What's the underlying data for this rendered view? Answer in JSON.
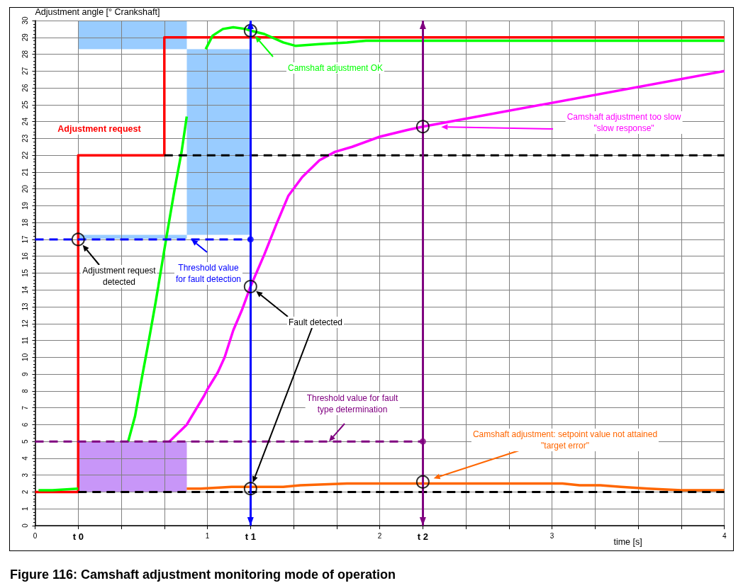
{
  "chart_data": {
    "type": "line",
    "title": "Figure 116: Camshaft adjustment monitoring mode of operation",
    "xlabel": "time [s]",
    "ylabel": "Adjustment angle [° Crankshaft]",
    "xlim": [
      0,
      4
    ],
    "xticks": [
      0,
      {
        "value": 0.25,
        "label": "t 0"
      },
      {
        "value": 0.5,
        "label": null
      },
      {
        "value": 0.75,
        "label": null
      },
      1,
      {
        "value": 1.25,
        "label": "t 1"
      },
      {
        "value": 1.5,
        "label": null
      },
      {
        "value": 1.75,
        "label": null
      },
      2,
      {
        "value": 2.25,
        "label": "t 2"
      },
      {
        "value": 2.5,
        "label": null
      },
      {
        "value": 2.75,
        "label": null
      },
      3,
      {
        "value": 3.25,
        "label": null
      },
      {
        "value": 3.5,
        "label": null
      },
      {
        "value": 3.75,
        "label": null
      },
      4
    ],
    "ylim": [
      0,
      30
    ],
    "yticks": [
      0,
      1,
      2,
      3,
      4,
      5,
      6,
      7,
      8,
      9,
      10,
      11,
      12,
      13,
      14,
      15,
      16,
      17,
      18,
      19,
      20,
      21,
      22,
      23,
      24,
      25,
      26,
      27,
      28,
      29,
      30
    ],
    "grid": true,
    "legend": false,
    "marker": "none",
    "series": [
      {
        "name": "Adjustment request",
        "type": "step",
        "color": "#ff0000",
        "x": [
          0,
          0.25,
          0.75,
          4
        ],
        "values": [
          2,
          22,
          29,
          29
        ]
      },
      {
        "name": "Camshaft adjustment OK",
        "color": "#00ff00",
        "x": [
          0.02,
          0.1,
          0.25,
          0.4,
          0.54,
          0.58,
          0.62,
          0.66,
          0.7,
          0.76,
          0.81,
          0.85,
          0.88,
          0.93,
          0.99,
          1.03,
          1.09,
          1.15,
          1.22,
          1.25,
          1.33,
          1.44,
          1.51,
          1.65,
          1.81,
          1.92,
          2.25,
          4
        ],
        "values": [
          2.1,
          2.1,
          2.2,
          null,
          5,
          6.5,
          8.8,
          11,
          13.3,
          17,
          20,
          22.2,
          24.3,
          null,
          28.3,
          29.1,
          29.5,
          29.6,
          29.5,
          29.4,
          29.2,
          28.7,
          28.5,
          28.6,
          28.7,
          28.8,
          28.8,
          28.8
        ]
      },
      {
        "name": "Camshaft adjustment too slow\n\"slow response\"",
        "color": "#ff00ff",
        "x": [
          0.78,
          0.88,
          0.98,
          1,
          1.06,
          1.1,
          1.15,
          1.2,
          1.25,
          1.33,
          1.4,
          1.47,
          1.55,
          1.65,
          1.74,
          1.84,
          2,
          2.16,
          2.25,
          4
        ],
        "values": [
          5,
          6,
          7.7,
          8.1,
          9.1,
          10,
          11.6,
          12.8,
          14.2,
          16.1,
          17.9,
          19.6,
          20.7,
          21.7,
          22.2,
          22.5,
          23.1,
          23.5,
          23.7,
          27
        ]
      },
      {
        "name": "Camshaft adjustment: setpoint value not attained\n\"target error\"",
        "color": "#ff6600",
        "x": [
          0.88,
          0.96,
          1.14,
          1.25,
          1.44,
          1.54,
          1.81,
          1.95,
          2.25,
          2.84,
          3.06,
          3.16,
          3.28,
          3.4,
          3.56,
          3.75,
          4
        ],
        "values": [
          2.2,
          2.2,
          2.3,
          2.3,
          2.3,
          2.4,
          2.5,
          2.5,
          2.5,
          2.5,
          2.5,
          2.4,
          2.4,
          2.3,
          2.2,
          2.1,
          2.1
        ]
      },
      {
        "name": "Threshold value\nfor fault detection",
        "color": "#0000ff",
        "line_style": "dashed",
        "x": [
          0,
          1.25
        ],
        "values": [
          17,
          17
        ]
      },
      {
        "name": "Threshold value for fault\ntype determination",
        "color": "#800080",
        "line_style": "dashed",
        "x": [
          0,
          2.25
        ],
        "values": [
          5,
          5
        ]
      },
      {
        "color": "#000000",
        "line_style": "dashed",
        "x": [
          0.75,
          4
        ],
        "values": [
          22,
          22
        ]
      },
      {
        "color": "#000000",
        "line_style": "dashed",
        "x": [
          0.25,
          4
        ],
        "values": [
          2,
          2
        ]
      },
      {
        "type": "scatter",
        "color": "#000000",
        "marker": "circle",
        "x": [
          0.25,
          1.25,
          1.25,
          1.25,
          2.25,
          2.25
        ],
        "values": [
          17,
          29.4,
          14.2,
          2.2,
          23.7,
          2.6
        ]
      },
      {
        "type": "scatter",
        "marker": "circle",
        "colors": [
          "#0000ff",
          "#800080"
        ],
        "x": [
          1.25,
          2.25
        ],
        "values": [
          17,
          5
        ]
      }
    ],
    "ref_lines": [
      {
        "axis": "x",
        "value": 1.25,
        "color": "#0000ff"
      },
      {
        "axis": "x",
        "value": 2.25,
        "color": "#800080"
      }
    ],
    "annotations": [
      "Adjustment request\ndetected",
      "Fault detected"
    ]
  }
}
